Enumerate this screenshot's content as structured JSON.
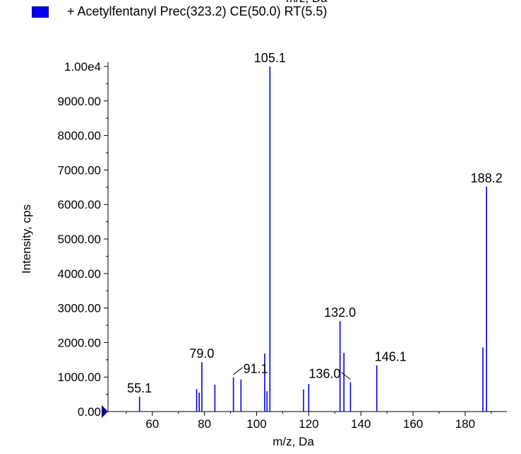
{
  "header": {
    "clipped_axis_label": "m/z, Da"
  },
  "legend": {
    "color": "#0000ee",
    "entry": "+ Acetylfentanyl Prec(323.2) CE(50.0) RT(5.5)"
  },
  "chart_data": {
    "type": "bar",
    "xlabel": "m/z, Da",
    "ylabel": "Intensity, cps",
    "xlim": [
      43,
      196
    ],
    "ylim": [
      0,
      10000
    ],
    "x_ticks": [
      "60",
      "80",
      "100",
      "120",
      "140",
      "160",
      "180"
    ],
    "y_ticks": [
      "0.00",
      "1000.00",
      "2000.00",
      "3000.00",
      "4000.00",
      "5000.00",
      "6000.00",
      "7000.00",
      "8000.00",
      "9000.00",
      "1.00e4"
    ],
    "series": [
      {
        "color": "#0000ee",
        "x": [
          55.1,
          77.0,
          78.0,
          79.0,
          84.0,
          91.1,
          94.0,
          103.1,
          104.0,
          105.1,
          118.0,
          120.0,
          132.0,
          133.5,
          136.0,
          146.1,
          186.8,
          188.2
        ],
        "y": [
          430,
          650,
          550,
          1430,
          780,
          990,
          930,
          1680,
          590,
          10000,
          640,
          800,
          2620,
          1700,
          850,
          1340,
          1860,
          6520
        ]
      }
    ],
    "annotations": [
      {
        "text": "55.1",
        "x": 55.1
      },
      {
        "text": "79.0",
        "x": 79.0
      },
      {
        "text": "91.1",
        "x": 91.1
      },
      {
        "text": "105.1",
        "x": 105.1
      },
      {
        "text": "132.0",
        "x": 132.0
      },
      {
        "text": "136.0",
        "x": 136.0
      },
      {
        "text": "146.1",
        "x": 146.1
      },
      {
        "text": "188.2",
        "x": 188.2
      }
    ]
  }
}
